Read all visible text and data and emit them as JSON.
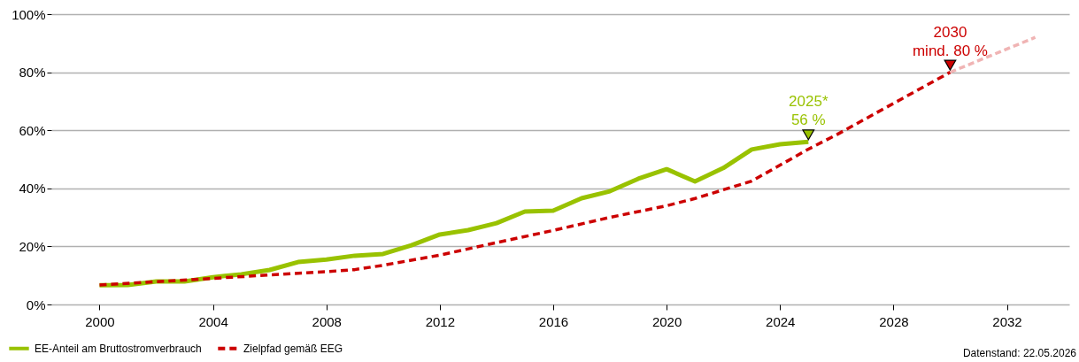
{
  "chart_data": {
    "type": "line",
    "x": [
      2000,
      2001,
      2002,
      2003,
      2004,
      2005,
      2006,
      2007,
      2008,
      2009,
      2010,
      2011,
      2012,
      2013,
      2014,
      2015,
      2016,
      2017,
      2018,
      2019,
      2020,
      2021,
      2022,
      2023,
      2024,
      2025
    ],
    "series": [
      {
        "name": "EE-Anteil am Bruttostromverbrauch",
        "color": "#99c200",
        "line_style": "solid",
        "values": [
          6.6,
          6.7,
          7.9,
          7.9,
          9.4,
          10.4,
          11.9,
          14.6,
          15.5,
          16.8,
          17.4,
          20.4,
          24.1,
          25.6,
          28.0,
          32.0,
          32.3,
          36.6,
          39.0,
          43.3,
          46.6,
          42.4,
          47.0,
          53.4,
          55.2,
          56.0
        ]
      },
      {
        "name": "Zielpfad gemäß EEG",
        "color": "#cc0000",
        "line_style": "dashed",
        "x": [
          2000,
          2004,
          2008,
          2009,
          2010,
          2012,
          2014,
          2016,
          2018,
          2020,
          2021,
          2022,
          2023,
          2024,
          2025,
          2026,
          2030
        ],
        "values": [
          6.7,
          9.0,
          11.3,
          12.0,
          13.5,
          17.0,
          21.3,
          25.5,
          30.0,
          34.0,
          36.5,
          39.5,
          42.5,
          48.0,
          53.5,
          58.5,
          80.0
        ]
      },
      {
        "color": "#f0b4b4",
        "line_style": "dashed",
        "x": [
          2030,
          2033
        ],
        "values": [
          80.0,
          92.0
        ]
      }
    ],
    "xlim": [
      1998.3,
      2034.2
    ],
    "xticks": [
      2000,
      2004,
      2008,
      2012,
      2016,
      2020,
      2024,
      2028,
      2032
    ],
    "ylim": [
      0,
      100
    ],
    "yticks": [
      {
        "value": 0,
        "label": "0%"
      },
      {
        "value": 20,
        "label": "20%"
      },
      {
        "value": 40,
        "label": "40%"
      },
      {
        "value": 60,
        "label": "60%"
      },
      {
        "value": 80,
        "label": "80%"
      },
      {
        "value": 100,
        "label": "100%"
      }
    ],
    "grid": "y",
    "legend": "bottom left",
    "annotations": [
      {
        "text": "2025*\n56 %",
        "x": 2025,
        "y": 56
      },
      {
        "text": "2030\nmind. 80 %",
        "x": 2030,
        "y": 80
      },
      "Datenstand: 22.05.2026"
    ]
  }
}
